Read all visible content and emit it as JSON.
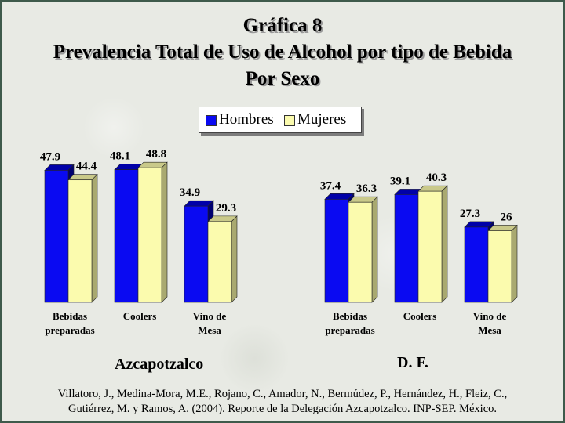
{
  "title": {
    "line1": "Gráfica 8",
    "line2": "Prevalencia Total de Uso de Alcohol por tipo de Bebida",
    "line3": "Por Sexo"
  },
  "legend": {
    "hombres": "Hombres",
    "mujeres": "Mujeres"
  },
  "colors": {
    "hombres": "#0a0af2",
    "mujeres": "#fbfbae"
  },
  "groups": {
    "azcapotzalco": "Azcapotzalco",
    "df": "D. F."
  },
  "citation": {
    "line1": "Villatoro, J., Medina-Mora, M.E., Rojano, C., Amador, N., Bermúdez, P., Hernández, H., Fleiz, C.,",
    "line2": "Gutiérrez, M. y Ramos, A. (2004). Reporte de la Delegación Azcapotzalco. INP-SEP. México."
  },
  "chart_data": [
    {
      "type": "bar",
      "group": "Azcapotzalco",
      "categories": [
        [
          "Bebidas",
          "preparadas"
        ],
        [
          "Coolers"
        ],
        [
          "Vino de",
          "Mesa"
        ]
      ],
      "series": [
        {
          "name": "Hombres",
          "values": [
            47.9,
            48.1,
            34.9
          ],
          "labels": [
            "47.9",
            "48.1",
            "34.9"
          ]
        },
        {
          "name": "Mujeres",
          "values": [
            44.4,
            48.8,
            29.3
          ],
          "labels": [
            "44.4",
            "48.8",
            "29.3"
          ]
        }
      ]
    },
    {
      "type": "bar",
      "group": "D. F.",
      "categories": [
        [
          "Bebidas",
          "preparadas"
        ],
        [
          "Coolers"
        ],
        [
          "Vino de",
          "Mesa"
        ]
      ],
      "series": [
        {
          "name": "Hombres",
          "values": [
            37.4,
            39.1,
            27.3
          ],
          "labels": [
            "37.4",
            "39.1",
            "27.3"
          ]
        },
        {
          "name": "Mujeres",
          "values": [
            36.3,
            40.3,
            26.0
          ],
          "labels": [
            "36.3",
            "40.3",
            "26"
          ]
        }
      ]
    }
  ]
}
